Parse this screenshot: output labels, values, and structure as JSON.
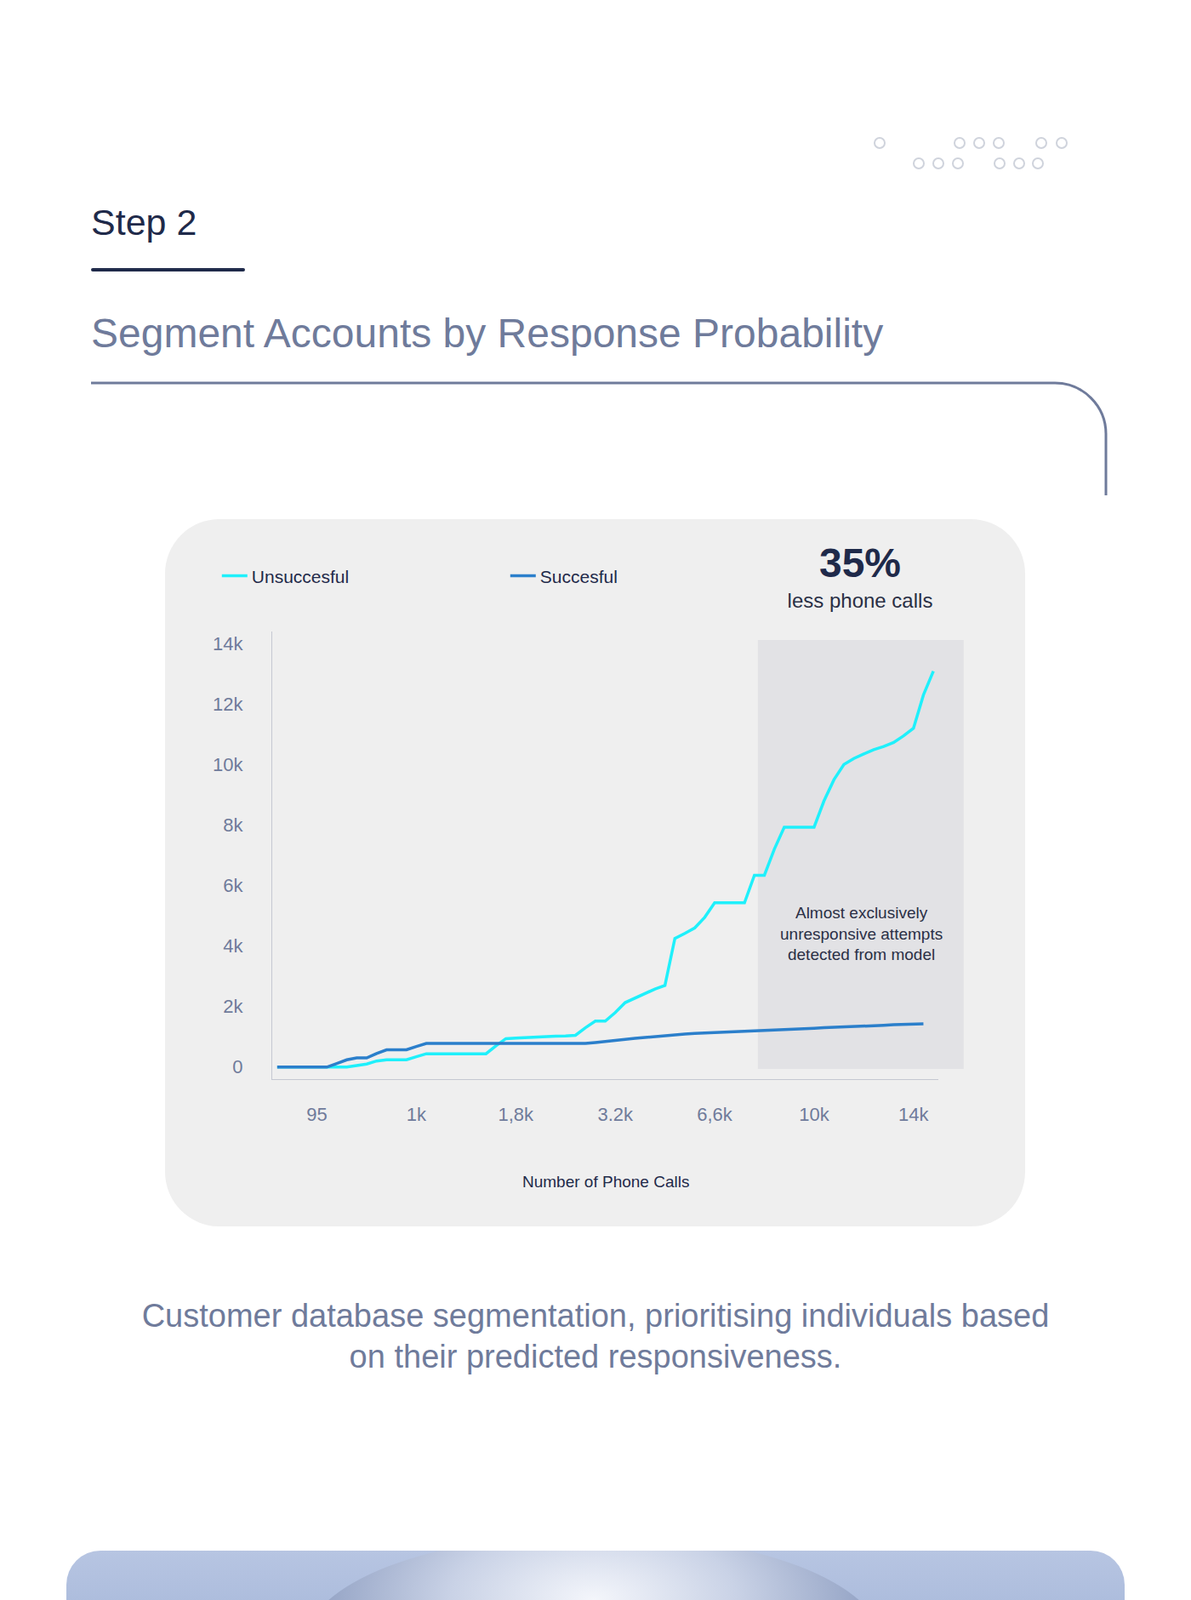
{
  "header": {
    "step": "Step 2",
    "title": "Segment Accounts by Response Probability"
  },
  "chart_data": {
    "type": "line",
    "categories": [
      null,
      null,
      null,
      null,
      "95",
      null,
      null,
      null,
      null,
      null,
      null,
      null,
      null,
      null,
      "1k",
      null,
      null,
      null,
      null,
      null,
      null,
      null,
      null,
      null,
      "1,8k",
      null,
      null,
      null,
      null,
      null,
      null,
      null,
      null,
      null,
      "3.2k",
      null,
      null,
      null,
      null,
      null,
      null,
      null,
      null,
      null,
      "6,6k",
      null,
      null,
      null,
      null,
      null,
      null,
      null,
      null,
      null,
      "10k",
      null,
      null,
      null,
      null,
      null,
      null,
      null,
      null,
      null,
      "14k",
      null,
      null
    ],
    "series": [
      {
        "name": "Unsuccesful",
        "color": "#1ff0fb",
        "values": [
          0,
          0,
          0,
          0,
          0,
          0,
          0,
          0,
          50,
          100,
          200,
          240,
          240,
          240,
          340,
          440,
          440,
          440,
          440,
          440,
          440,
          440,
          700,
          940,
          960,
          980,
          1000,
          1010,
          1020,
          1030,
          1050,
          1300,
          1520,
          1520,
          1800,
          2130,
          2280,
          2430,
          2580,
          2700,
          4250,
          4420,
          4600,
          4950,
          5430,
          5430,
          5430,
          5430,
          6340,
          6340,
          7200,
          7930,
          7930,
          7930,
          7930,
          8800,
          9500,
          10000,
          10200,
          10350,
          10490,
          10600,
          10730,
          10950,
          11200,
          12300,
          13090
        ]
      },
      {
        "name": "Succesful",
        "color": "#2b7fcb",
        "values": [
          0,
          0,
          0,
          0,
          0,
          0,
          120,
          240,
          300,
          300,
          450,
          570,
          570,
          570,
          680,
          780,
          780,
          780,
          780,
          780,
          780,
          780,
          780,
          780,
          780,
          780,
          780,
          780,
          780,
          780,
          780,
          780,
          810,
          850,
          880,
          910,
          950,
          980,
          1010,
          1040,
          1080,
          1090,
          1110,
          1120,
          1140,
          1150,
          1170,
          1180,
          1200,
          1210,
          1220,
          1240,
          1250,
          1270,
          1280,
          1300,
          1310,
          1320,
          1340,
          1350,
          1370,
          1380,
          1400,
          1410,
          1420,
          1430,
          null
        ]
      }
    ],
    "ylim": [
      -400,
      14400
    ],
    "yticks": [
      0,
      {
        "value": 2000,
        "label": "2k"
      },
      {
        "value": 4000,
        "label": "4k"
      },
      {
        "value": 6000,
        "label": "6k"
      },
      {
        "value": 8000,
        "label": "8k"
      },
      {
        "value": 10000,
        "label": "10k"
      },
      {
        "value": 12000,
        "label": "12k"
      },
      {
        "value": 14000,
        "label": "14k"
      }
    ],
    "x_label": "Number of Phone Calls",
    "highlight": "35%",
    "highlight_text": "less phone calls",
    "note": "Almost exclusively unresponsive attempts detected from model",
    "legend": "top",
    "grid": false
  },
  "caption": "Customer database segmentation, prioritising individuals based on their predicted responsiveness."
}
